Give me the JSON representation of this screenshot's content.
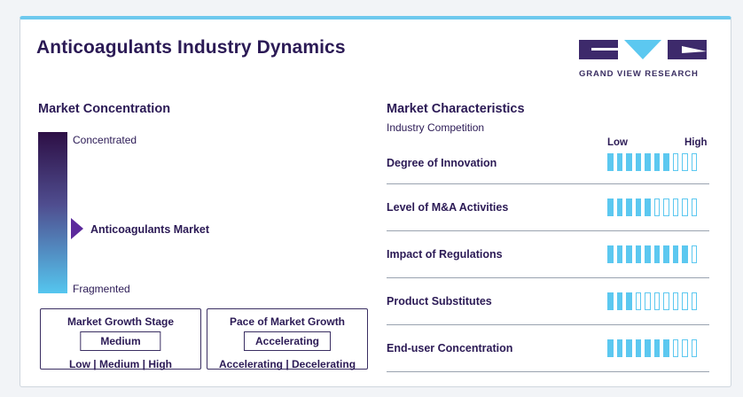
{
  "header": {
    "title": "Anticoagulants Industry Dynamics",
    "logo_text": "GRAND VIEW RESEARCH"
  },
  "concentration": {
    "title": "Market Concentration",
    "top_label": "Concentrated",
    "bottom_label": "Fragmented",
    "market_label": "Anticoagulants Market",
    "marker_position": 0.55
  },
  "growth_stage": {
    "title": "Market Growth Stage",
    "value": "Medium",
    "scale": "Low | Medium | High"
  },
  "growth_pace": {
    "title": "Pace of Market Growth",
    "value": "Accelerating",
    "scale": "Accelerating | Decelerating"
  },
  "characteristics": {
    "title": "Market Characteristics",
    "subtitle": "Industry Competition",
    "low_label": "Low",
    "high_label": "High",
    "rows": [
      {
        "label": "Degree of Innovation",
        "filled": 7,
        "total": 10
      },
      {
        "label": "Level of M&A Activities",
        "filled": 5,
        "total": 10
      },
      {
        "label": "Impact of Regulations",
        "filled": 9,
        "total": 10
      },
      {
        "label": "Product Substitutes",
        "filled": 3,
        "total": 10
      },
      {
        "label": "End-user Concentration",
        "filled": 7,
        "total": 10
      }
    ]
  },
  "colors": {
    "accent": "#5cc8f0",
    "brand": "#2b1a55",
    "marker": "#5c2a9c"
  }
}
